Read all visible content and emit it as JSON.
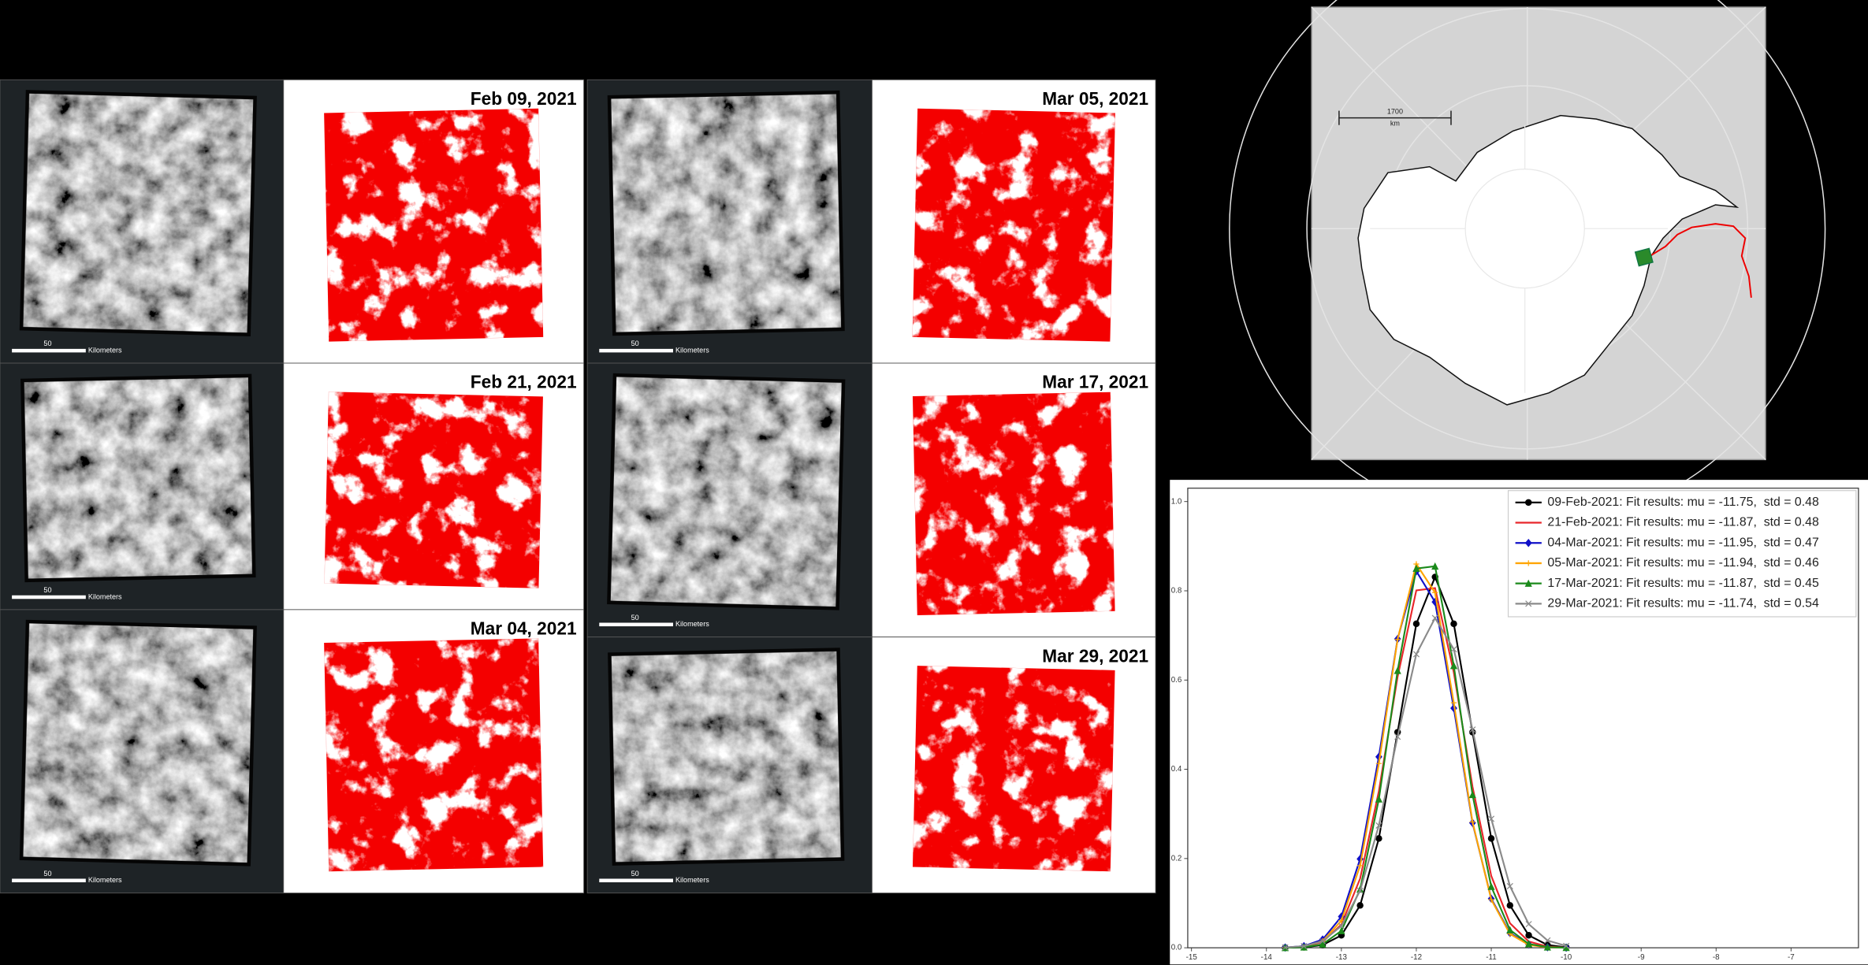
{
  "panels": [
    {
      "date": "Feb 09, 2021",
      "scale_value": 50,
      "scale_unit": "Kilometers"
    },
    {
      "date": "Feb 21, 2021",
      "scale_value": 50,
      "scale_unit": "Kilometers"
    },
    {
      "date": "Mar 04, 2021",
      "scale_value": 50,
      "scale_unit": "Kilometers"
    },
    {
      "date": "Mar 05, 2021",
      "scale_value": 50,
      "scale_unit": "Kilometers"
    },
    {
      "date": "Mar 17, 2021",
      "scale_value": 50,
      "scale_unit": "Kilometers"
    },
    {
      "date": "Mar 29, 2021",
      "scale_value": 50,
      "scale_unit": "Kilometers"
    }
  ],
  "map": {
    "scale_value": 1700,
    "scale_unit": "km"
  },
  "chart_data": {
    "type": "line",
    "x": [
      -13.75,
      -13.5,
      -13.25,
      -13.0,
      -12.75,
      -12.5,
      -12.25,
      -12.0,
      -11.75,
      -11.5,
      -11.25,
      -11.0,
      -10.75,
      -10.5,
      -10.25,
      -10.0
    ],
    "series": [
      {
        "name": "09-Feb-2021: Fit results: mu = -11.75,  std = 0.48",
        "color": "#000000",
        "marker": "o",
        "values": [
          0.0001,
          0.0011,
          0.0063,
          0.028,
          0.095,
          0.245,
          0.483,
          0.726,
          0.831,
          0.726,
          0.483,
          0.245,
          0.095,
          0.028,
          0.0063,
          0.0011
        ]
      },
      {
        "name": "21-Feb-2021: Fit results: mu = -11.87,  std = 0.48",
        "color": "#e8262a",
        "marker": "none",
        "values": [
          0.0004,
          0.0026,
          0.0133,
          0.052,
          0.155,
          0.351,
          0.607,
          0.801,
          0.806,
          0.617,
          0.361,
          0.161,
          0.055,
          0.0141,
          0.0028,
          0.0004
        ]
      },
      {
        "name": "04-Mar-2021: Fit results: mu = -11.95,  std = 0.47",
        "color": "#1010c8",
        "marker": "D",
        "values": [
          0.0006,
          0.0037,
          0.0185,
          0.07,
          0.199,
          0.428,
          0.692,
          0.844,
          0.775,
          0.537,
          0.28,
          0.11,
          0.033,
          0.0073,
          0.0012,
          0.0002
        ]
      },
      {
        "name": "05-Mar-2021: Fit results: mu = -11.94,  std = 0.46",
        "color": "#ffa500",
        "marker": "+",
        "values": [
          0.0004,
          0.0028,
          0.015,
          0.061,
          0.184,
          0.413,
          0.691,
          0.86,
          0.796,
          0.549,
          0.282,
          0.108,
          0.031,
          0.0065,
          0.001,
          0.0001
        ]
      },
      {
        "name": "17-Mar-2021: Fit results: mu = -11.87,  std = 0.45",
        "color": "#1b8a1b",
        "marker": "^",
        "values": [
          0.0001,
          0.0013,
          0.008,
          0.038,
          0.131,
          0.333,
          0.621,
          0.85,
          0.855,
          0.632,
          0.343,
          0.137,
          0.04,
          0.0086,
          0.0014,
          0.0002
        ]
      },
      {
        "name": "29-Mar-2021: Fit results: mu = -11.74,  std = 0.54",
        "color": "#8a8a8a",
        "marker": "x",
        "values": [
          0.0007,
          0.0037,
          0.0148,
          0.049,
          0.128,
          0.274,
          0.473,
          0.658,
          0.739,
          0.669,
          0.489,
          0.289,
          0.138,
          0.053,
          0.0164,
          0.0041
        ]
      }
    ],
    "xlim": [
      -15.05,
      -6.1
    ],
    "ylim": [
      0,
      1.03
    ],
    "xticks": [
      -15,
      -14,
      -13,
      -12,
      -11,
      -10,
      -9,
      -8,
      -7
    ],
    "yticks": [
      {
        "value": 0,
        "label": "0.0"
      },
      0.2,
      0.4,
      0.6,
      0.8,
      {
        "value": 1,
        "label": "1.0"
      }
    ],
    "grid": false,
    "legend": "upper right"
  }
}
